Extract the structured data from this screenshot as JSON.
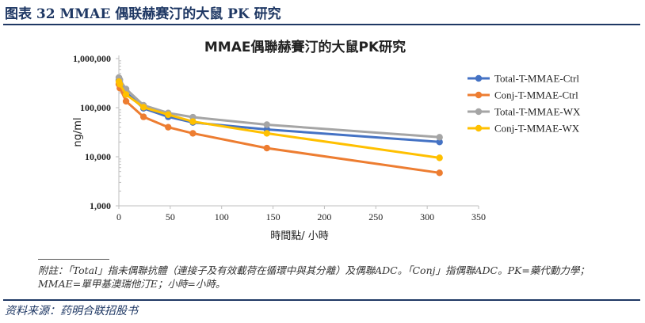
{
  "header": {
    "figure_title": "图表 32   MMAE 偶联赫赛汀的大鼠 PK 研究"
  },
  "footer": {
    "note": "附註：「Total」指未偶聯抗體（連接子及有效載荷在循環中與其分離）及偶聯ADC。「Conj」指偶聯ADC。PK=藥代動力學；MMAE=單甲基澳瑞他汀E；小時=小時。",
    "source": "资料来源：药明合联招股书"
  },
  "chart_data": {
    "type": "line",
    "title": "MMAE偶聯赫賽汀的大鼠PK研究",
    "xlabel": "時間點/ 小時",
    "ylabel": "ng/ml",
    "xlim": [
      0,
      350
    ],
    "ylim": [
      1000,
      1000000
    ],
    "yscale": "log",
    "x_ticks": [
      0,
      50,
      100,
      150,
      200,
      250,
      300,
      350
    ],
    "y_ticks": [
      1000,
      10000,
      100000,
      1000000
    ],
    "y_tick_labels": [
      "1,000",
      "10,000",
      "100,000",
      "1,000,000"
    ],
    "legend_position": "right",
    "grid": false,
    "series": [
      {
        "name": "Total-T-MMAE-Ctrl",
        "color": "#4472c4",
        "x": [
          0,
          1,
          7,
          24,
          48,
          72,
          144,
          312
        ],
        "y": [
          360000,
          320000,
          205000,
          97000,
          65000,
          50000,
          36000,
          20000
        ]
      },
      {
        "name": "Conj-T-MMAE-Ctrl",
        "color": "#ed7d31",
        "x": [
          0,
          1,
          7,
          24,
          48,
          72,
          144,
          312
        ],
        "y": [
          300000,
          250000,
          135000,
          65000,
          40000,
          30000,
          15000,
          4700
        ]
      },
      {
        "name": "Total-T-MMAE-WX",
        "color": "#a5a5a5",
        "x": [
          0,
          1,
          7,
          24,
          48,
          72,
          144,
          312
        ],
        "y": [
          410000,
          370000,
          240000,
          112000,
          78000,
          64000,
          45000,
          25000
        ]
      },
      {
        "name": "Conj-T-MMAE-WX",
        "color": "#ffc000",
        "x": [
          0,
          1,
          7,
          24,
          48,
          72,
          144,
          312
        ],
        "y": [
          340000,
          300000,
          185000,
          102000,
          72000,
          52000,
          30000,
          9500
        ]
      }
    ]
  }
}
